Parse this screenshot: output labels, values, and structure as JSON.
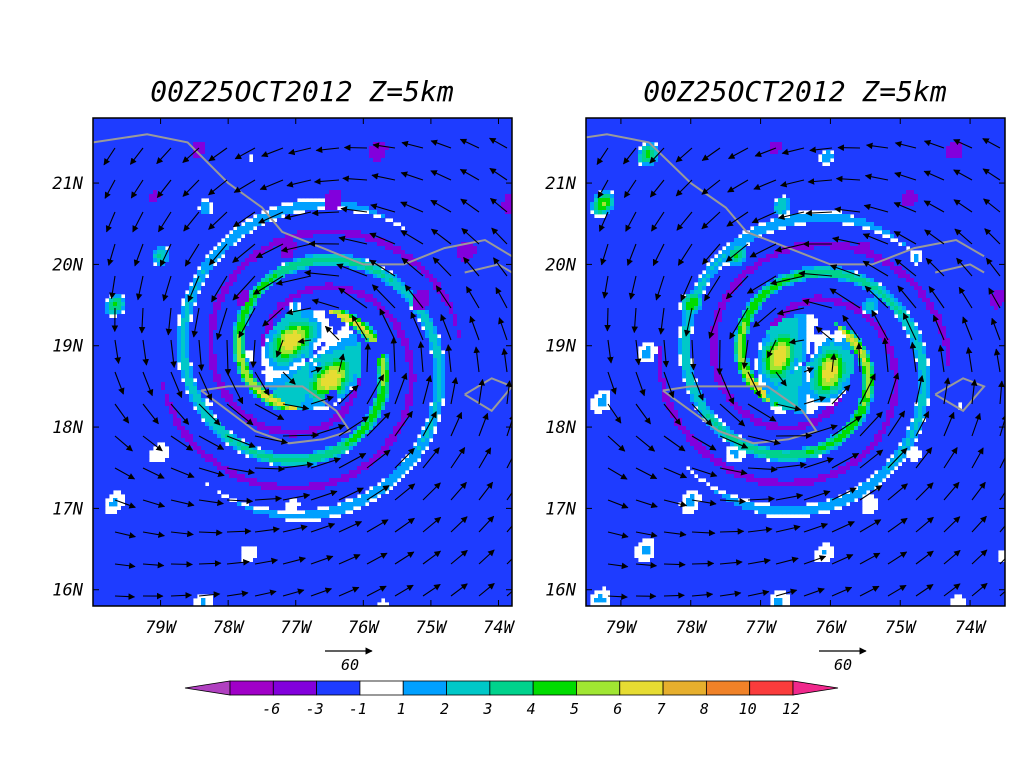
{
  "chart_data": [
    {
      "type": "heatmap",
      "title": "00Z25OCT2012 Z=5km",
      "x_range": [
        -80,
        -73.8
      ],
      "y_range": [
        15.8,
        21.8
      ],
      "x_ticks": [
        "79W",
        "78W",
        "77W",
        "76W",
        "75W",
        "74W"
      ],
      "y_ticks": [
        "16N",
        "17N",
        "18N",
        "19N",
        "20N",
        "21N"
      ],
      "storm_center": [
        -76.8,
        18.85
      ],
      "ring_radius_deg": 0.75,
      "reference_vector": "60",
      "coastlines": true
    },
    {
      "type": "heatmap",
      "title": "00Z25OCT2012 Z=5km",
      "x_range": [
        -79.5,
        -73.5
      ],
      "y_range": [
        15.8,
        21.8
      ],
      "x_ticks": [
        "79W",
        "78W",
        "77W",
        "76W",
        "75W",
        "74W"
      ],
      "y_ticks": [
        "16N",
        "17N",
        "18N",
        "19N",
        "20N",
        "21N"
      ],
      "storm_center": [
        -76.4,
        18.8
      ],
      "ring_radius_deg": 0.7,
      "reference_vector": "60",
      "coastlines": true
    }
  ],
  "colorbar": {
    "labels": [
      "-6",
      "-3",
      "-1",
      "1",
      "2",
      "3",
      "4",
      "5",
      "6",
      "7",
      "8",
      "10",
      "12"
    ],
    "colors": [
      "#a000c8",
      "#8200dc",
      "#1e3cff",
      "#ffffff",
      "#00a0ff",
      "#00c8c8",
      "#00d28c",
      "#00dc00",
      "#a0e632",
      "#e6dc32",
      "#e6af2d",
      "#f08228",
      "#fa3c3c"
    ],
    "under_color": "#b040c0",
    "over_color": "#f0288c"
  }
}
